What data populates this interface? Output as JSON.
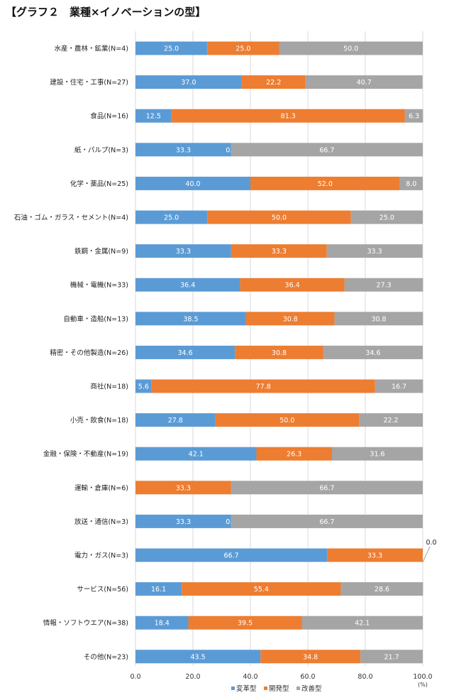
{
  "chart_data": {
    "type": "bar",
    "stacked": true,
    "orientation": "horizontal",
    "title": "【グラフ２　業種×イノベーションの型】",
    "categories": [
      "水産・農林・鉱業(N=4)",
      "建設・住宅・工事(N=27)",
      "食品(N=16)",
      "紙・パルプ(N=3)",
      "化学・薬品(N=25)",
      "石油・ゴム・ガラス・セメント(N=4)",
      "鉄鋼・金属(N=9)",
      "機械・電機(N=33)",
      "自動車・造船(N=13)",
      "精密・その他製造(N=26)",
      "商社(N=18)",
      "小売・飲食(N=18)",
      "金融・保険・不動産(N=19)",
      "運輸・倉庫(N=6)",
      "放送・通信(N=3)",
      "電力・ガス(N=3)",
      "サービス(N=56)",
      "情報・ソフトウエア(N=38)",
      "その他(N=23)"
    ],
    "series": [
      {
        "name": "変革型",
        "color": "#5b9bd5",
        "values": [
          25.0,
          37.0,
          12.5,
          33.3,
          40.0,
          25.0,
          33.3,
          36.4,
          38.5,
          34.6,
          5.6,
          27.8,
          42.1,
          0.0,
          33.3,
          66.7,
          16.1,
          18.4,
          43.5
        ]
      },
      {
        "name": "開発型",
        "color": "#ed7d31",
        "values": [
          25.0,
          22.2,
          81.3,
          0.0,
          52.0,
          50.0,
          33.3,
          36.4,
          30.8,
          30.8,
          77.8,
          50.0,
          26.3,
          33.3,
          0.0,
          33.3,
          55.4,
          39.5,
          34.8
        ]
      },
      {
        "name": "改善型",
        "color": "#a5a5a5",
        "values": [
          50.0,
          40.7,
          6.3,
          66.7,
          8.0,
          25.0,
          33.3,
          27.3,
          30.8,
          34.6,
          16.7,
          22.2,
          31.6,
          66.7,
          66.7,
          0.0,
          28.6,
          42.1,
          21.7
        ]
      }
    ],
    "labels": [
      [
        "25.0",
        "25.0",
        "50.0"
      ],
      [
        "37.0",
        "22.2",
        "40.7"
      ],
      [
        "12.5",
        "81.3",
        "6.3"
      ],
      [
        "33.3",
        "0.0",
        "66.7"
      ],
      [
        "40.0",
        "52.0",
        "8.0"
      ],
      [
        "25.0",
        "50.0",
        "25.0"
      ],
      [
        "33.3",
        "33.3",
        "33.3"
      ],
      [
        "36.4",
        "36.4",
        "27.3"
      ],
      [
        "38.5",
        "30.8",
        "30.8"
      ],
      [
        "34.6",
        "30.8",
        "34.6"
      ],
      [
        "5.6",
        "77.8",
        "16.7"
      ],
      [
        "27.8",
        "50.0",
        "22.2"
      ],
      [
        "42.1",
        "26.3",
        "31.6"
      ],
      [
        "0",
        "33.3",
        "66.7"
      ],
      [
        "33.3",
        "0.0",
        "66.7"
      ],
      [
        "66.7",
        "33.3",
        "0.0"
      ],
      [
        "16.1",
        "55.4",
        "28.6"
      ],
      [
        "18.4",
        "39.5",
        "42.1"
      ],
      [
        "43.5",
        "34.8",
        "21.7"
      ]
    ],
    "xlim": [
      0,
      100
    ],
    "xticks": [
      "0.0",
      "20.0",
      "40.0",
      "60.0",
      "80.0",
      "100.0"
    ],
    "xunit": "(%)",
    "grid": true,
    "legend_position": "bottom"
  }
}
